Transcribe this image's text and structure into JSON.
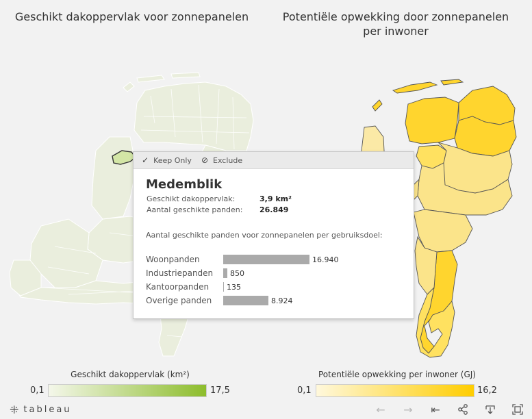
{
  "titles": {
    "left": "Geschikt dakoppervlak voor zonnepanelen",
    "right_line1": "Potentiële opwekking door zonnepanelen",
    "right_line2": "per inwoner"
  },
  "tooltip": {
    "keep_only": "Keep Only",
    "exclude": "Exclude",
    "municipality": "Medemblik",
    "area_label": "Geschikt dakoppervlak:",
    "area_value": "3,9 km²",
    "count_label": "Aantal geschikte panden:",
    "count_value": "26.849",
    "subtitle": "Aantal geschikte panden voor zonnepanelen per gebruiksdoel:",
    "bars": [
      {
        "label": "Woonpanden",
        "value": 16940,
        "display": "16.940"
      },
      {
        "label": "Industriepanden",
        "value": 850,
        "display": "850"
      },
      {
        "label": "Kantoorpanden",
        "value": 135,
        "display": "135"
      },
      {
        "label": "Overige panden",
        "value": 8924,
        "display": "8.924"
      }
    ],
    "bar_max": 16940
  },
  "legend_left": {
    "title": "Geschikt dakoppervlak (km²)",
    "min": "0,1",
    "max": "17,5",
    "color_from": "#f4f7ea",
    "color_to": "#8dbd2c"
  },
  "legend_right": {
    "title": "Potentiële opwekking per inwoner (GJ)",
    "min": "0,1",
    "max": "16,2",
    "color_from": "#fff8dc",
    "color_to": "#ffcd00"
  },
  "footer": {
    "logo": "tableau"
  },
  "icons": {
    "keep_only": "check-icon",
    "exclude": "no-entry-icon",
    "undo": "arrow-left-icon",
    "redo": "arrow-right-icon",
    "revert": "revert-icon",
    "share": "share-icon",
    "download": "download-icon",
    "fullscreen": "fullscreen-icon"
  },
  "colors": {
    "map_left_fill": "#eaeedd",
    "map_left_highlight": "#d3e6a6",
    "map_right_dark": "#ffd52e",
    "map_right_mid": "#ffe160",
    "map_right_light": "#fbe48a",
    "map_right_pale": "#fbe9a6",
    "tooltip_bar": "#aaaaaa"
  }
}
